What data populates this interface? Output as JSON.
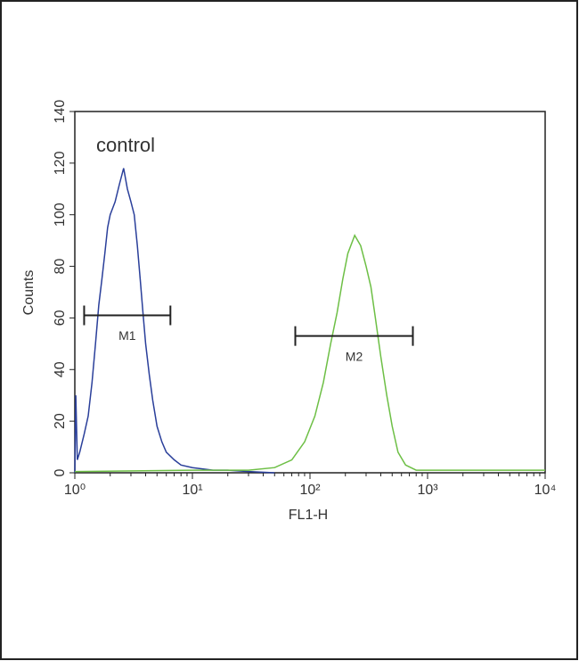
{
  "chart_data": {
    "type": "histogram-overlay",
    "xlabel": "FL1-H",
    "ylabel": "Counts",
    "xscale": "log",
    "xlim": [
      1,
      10000
    ],
    "ylim": [
      0,
      140
    ],
    "xticks": [
      {
        "value": 1,
        "label": "10⁰"
      },
      {
        "value": 10,
        "label": "10¹"
      },
      {
        "value": 100,
        "label": "10²"
      },
      {
        "value": 1000,
        "label": "10³"
      },
      {
        "value": 10000,
        "label": "10⁴"
      }
    ],
    "yticks": [
      0,
      20,
      40,
      60,
      80,
      100,
      120,
      140
    ],
    "series": [
      {
        "name": "control",
        "color": "#2a3f9a",
        "x": [
          1.0,
          1.02,
          1.05,
          1.1,
          1.2,
          1.3,
          1.4,
          1.5,
          1.6,
          1.7,
          1.8,
          1.9,
          2.0,
          2.2,
          2.4,
          2.6,
          2.8,
          3.0,
          3.2,
          3.4,
          3.6,
          3.8,
          4.0,
          4.3,
          4.6,
          5.0,
          5.5,
          6.0,
          7,
          8,
          10,
          15,
          20,
          30,
          50
        ],
        "values": [
          0,
          30,
          5,
          8,
          15,
          22,
          35,
          50,
          65,
          75,
          85,
          95,
          100,
          105,
          112,
          118,
          110,
          105,
          100,
          88,
          75,
          62,
          50,
          38,
          28,
          18,
          12,
          8,
          5,
          3,
          2,
          1,
          1,
          0.5,
          0
        ]
      },
      {
        "color": "#6dbf45",
        "x": [
          1,
          10,
          30,
          50,
          70,
          90,
          110,
          130,
          150,
          170,
          190,
          210,
          240,
          270,
          300,
          330,
          360,
          400,
          450,
          500,
          560,
          650,
          800,
          1000,
          10000
        ],
        "values": [
          0.5,
          1,
          1,
          2,
          5,
          12,
          22,
          35,
          50,
          62,
          75,
          85,
          92,
          88,
          80,
          72,
          60,
          45,
          30,
          18,
          8,
          3,
          1,
          1,
          1
        ]
      }
    ],
    "markers": [
      {
        "label": "M1",
        "x": [
          1.2,
          6.5
        ],
        "y": 61
      },
      {
        "label": "M2",
        "x": [
          75,
          750
        ],
        "y": 53
      }
    ]
  }
}
